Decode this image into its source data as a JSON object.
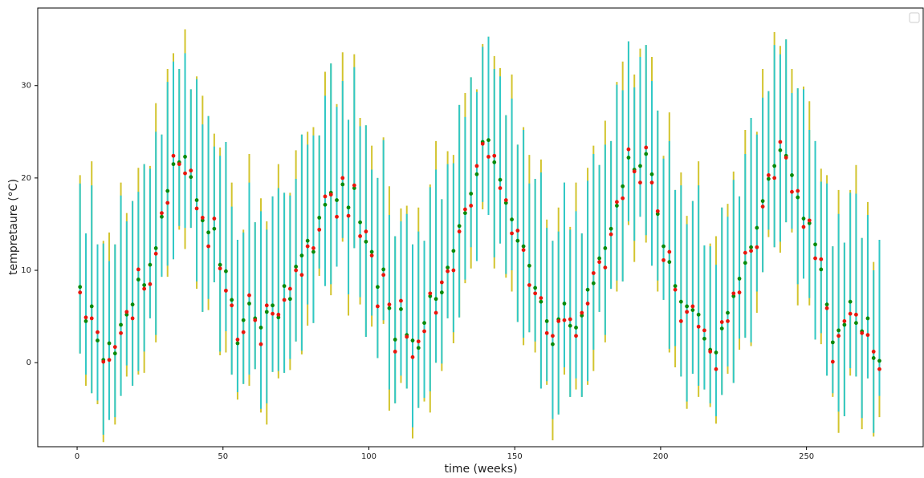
{
  "chart_data": {
    "type": "errorbar",
    "xlabel": "time (weeks)",
    "ylabel": "tempretaure (°C)",
    "xlim": [
      -13.5,
      290
    ],
    "ylim": [
      -9.1,
      38.4
    ],
    "xticks": [
      0,
      50,
      100,
      150,
      200,
      250
    ],
    "yticks": [
      0,
      10,
      20,
      30
    ],
    "legend": "upper right",
    "x": [
      1,
      3,
      5,
      7,
      9,
      11,
      13,
      15,
      17,
      19,
      21,
      23,
      25,
      27,
      29,
      31,
      33,
      35,
      37,
      39,
      41,
      43,
      45,
      47,
      49,
      51,
      53,
      55,
      57,
      59,
      61,
      63,
      65,
      67,
      69,
      71,
      73,
      75,
      77,
      79,
      81,
      83,
      85,
      87,
      89,
      91,
      93,
      95,
      97,
      99,
      101,
      103,
      105,
      107,
      109,
      111,
      113,
      115,
      117,
      119,
      121,
      123,
      125,
      127,
      129,
      131,
      133,
      135,
      137,
      139,
      141,
      143,
      145,
      147,
      149,
      151,
      153,
      155,
      157,
      159,
      161,
      163,
      165,
      167,
      169,
      171,
      173,
      175,
      177,
      179,
      181,
      183,
      185,
      187,
      189,
      191,
      193,
      195,
      197,
      199,
      201,
      203,
      205,
      207,
      209,
      211,
      213,
      215,
      217,
      219,
      221,
      223,
      225,
      227,
      229,
      231,
      233,
      235,
      237,
      239,
      241,
      243,
      245,
      247,
      249,
      251,
      253,
      255,
      257,
      259,
      261,
      263,
      265,
      267,
      269,
      271,
      273,
      275
    ],
    "series": [
      {
        "color": "#d2c42e",
        "low": [
          1.0,
          -2.5,
          -3.3,
          -4.5,
          -8.6,
          -6.2,
          -6.7,
          -3.6,
          -1.5,
          -2.5,
          -1.3,
          -1.1,
          4.8,
          2.2,
          9.3,
          9.3,
          11.2,
          14.4,
          12.3,
          14.6,
          8.0,
          5.5,
          5.7,
          8.7,
          0.8,
          1.1,
          -1.3,
          -4.0,
          -2.3,
          -2.5,
          -0.7,
          -5.4,
          -6.7,
          -1.0,
          -1.7,
          -1.1,
          -0.8,
          2.3,
          0.9,
          4.0,
          4.3,
          9.4,
          8.3,
          7.3,
          10.4,
          13.1,
          5.1,
          12.4,
          6.3,
          2.8,
          3.9,
          0.5,
          4.2,
          -5.2,
          -4.4,
          -2.2,
          -2.8,
          -8.2,
          -4.9,
          -4.2,
          -5.4,
          0.0,
          -0.9,
          4.8,
          2.1,
          4.9,
          8.6,
          10.2,
          11.0,
          16.6,
          16.0,
          10.2,
          12.9,
          9.2,
          7.7,
          4.4,
          1.9,
          3.3,
          1.1,
          -2.8,
          -2.4,
          -8.4,
          -5.6,
          -1.3,
          -3.7,
          -2.9,
          -3.7,
          -2.4,
          -0.9,
          5.5,
          2.2,
          8.0,
          7.7,
          8.8,
          14.9,
          10.9,
          15.8,
          13.0,
          10.5,
          7.7,
          6.8,
          1.1,
          -0.5,
          -1.5,
          -5.0,
          -1.2,
          -3.7,
          -2.9,
          -4.8,
          -6.6,
          -3.5,
          -1.2,
          -2.2,
          1.4,
          2.7,
          1.8,
          5.4,
          9.8,
          13.6,
          12.5,
          11.9,
          15.2,
          14.1,
          6.2,
          9.1,
          6.2,
          2.5,
          2.0,
          -1.4,
          -3.7,
          -7.6,
          -5.8,
          -1.4,
          -1.5,
          -7.2,
          -1.7,
          -8.0,
          -5.9
        ],
        "high": [
          20.3,
          14.0,
          21.8,
          12.8,
          13.2,
          14.1,
          12.8,
          19.5,
          16.2,
          17.5,
          21.1,
          21.5,
          21.3,
          28.1,
          24.7,
          31.8,
          33.5,
          31.8,
          36.1,
          29.6,
          31.0,
          28.9,
          26.7,
          24.8,
          23.3,
          23.9,
          19.5,
          13.3,
          14.4,
          22.6,
          15.2,
          17.8,
          15.3,
          18.0,
          21.5,
          18.4,
          18.4,
          23.0,
          24.7,
          25.0,
          25.5,
          24.6,
          31.5,
          32.4,
          28.0,
          33.6,
          26.3,
          33.4,
          26.5,
          25.7,
          23.5,
          20.0,
          24.4,
          19.1,
          13.7,
          16.7,
          17.0,
          12.8,
          16.8,
          13.2,
          19.3,
          24.0,
          17.7,
          22.9,
          22.5,
          27.9,
          29.2,
          30.9,
          29.6,
          34.5,
          35.3,
          33.2,
          31.9,
          26.8,
          31.2,
          23.6,
          25.5,
          22.5,
          19.9,
          22.0,
          15.5,
          13.2,
          16.8,
          19.5,
          14.7,
          19.5,
          14.0,
          21.1,
          23.5,
          21.4,
          26.2,
          24.0,
          30.4,
          32.6,
          34.8,
          31.2,
          34.0,
          34.4,
          33.1,
          27.3,
          22.4,
          27.1,
          18.7,
          20.6,
          15.9,
          17.5,
          21.8,
          12.7,
          12.9,
          13.7,
          16.8,
          17.2,
          20.7,
          18.0,
          25.2,
          26.5,
          25.0,
          31.8,
          29.4,
          35.8,
          34.3,
          35.0,
          31.8,
          29.7,
          29.9,
          28.3,
          24.0,
          21.0,
          20.3,
          12.6,
          18.7,
          13.0,
          18.7,
          21.4,
          13.5,
          17.4,
          10.9,
          13.3
        ]
      },
      {
        "color": "#30c8c8",
        "low": [
          1.0,
          -1.3,
          -3.3,
          -4.1,
          -7.8,
          -6.2,
          -5.9,
          -3.6,
          -0.3,
          -2.5,
          -0.9,
          1.2,
          4.8,
          3.0,
          9.3,
          10.5,
          11.2,
          14.8,
          14.6,
          14.6,
          8.8,
          5.5,
          6.9,
          8.7,
          1.2,
          3.4,
          -1.3,
          -3.2,
          -2.3,
          -1.3,
          -0.7,
          -5.0,
          -4.4,
          -1.0,
          -0.9,
          -1.1,
          0.4,
          2.3,
          1.3,
          6.3,
          4.3,
          10.2,
          8.3,
          8.5,
          10.4,
          13.5,
          7.4,
          12.4,
          7.1,
          2.8,
          5.1,
          0.5,
          4.6,
          -2.9,
          -4.4,
          -1.4,
          -2.8,
          -7.0,
          -4.9,
          -3.8,
          -3.1,
          0.0,
          -0.1,
          4.8,
          3.3,
          4.9,
          9.0,
          12.5,
          11.0,
          17.4,
          16.0,
          11.4,
          12.9,
          9.6,
          10.0,
          4.4,
          2.7,
          3.3,
          2.3,
          -2.8,
          -2.0,
          -6.1,
          -5.6,
          -0.5,
          -3.7,
          -1.7,
          -3.7,
          -2.0,
          1.4,
          5.5,
          3.0,
          8.0,
          8.9,
          8.8,
          15.3,
          13.2,
          15.8,
          13.8,
          10.5,
          8.9,
          6.8,
          1.5,
          1.8,
          -1.5,
          -4.2,
          -1.2,
          -2.5,
          -2.9,
          -4.4,
          -5.8,
          -3.5,
          -0.4,
          -2.2,
          2.6,
          2.7,
          2.2,
          7.7,
          9.8,
          14.4,
          12.5,
          13.1,
          15.2,
          14.5,
          8.5,
          9.1,
          7.0,
          2.5,
          3.2,
          -1.4,
          -3.3,
          -5.3,
          -5.8,
          -0.6,
          -1.5,
          -6.0,
          -1.7,
          -7.6,
          -3.6
        ],
        "high": [
          19.4,
          14.0,
          19.2,
          12.8,
          12.9,
          11.0,
          12.8,
          18.1,
          15.3,
          17.5,
          18.5,
          21.5,
          21.0,
          25.0,
          24.7,
          30.4,
          32.6,
          31.8,
          33.5,
          29.6,
          30.7,
          25.8,
          26.7,
          23.4,
          22.4,
          23.9,
          16.9,
          13.3,
          14.1,
          19.5,
          15.2,
          16.4,
          14.4,
          18.0,
          18.9,
          18.4,
          18.1,
          19.9,
          24.7,
          23.6,
          24.6,
          24.6,
          28.9,
          32.4,
          27.7,
          30.5,
          26.3,
          32.0,
          25.6,
          25.7,
          20.9,
          20.0,
          24.1,
          16.0,
          13.7,
          15.3,
          16.1,
          12.8,
          14.2,
          13.2,
          19.0,
          20.9,
          17.7,
          21.5,
          21.6,
          27.9,
          26.6,
          30.9,
          29.3,
          34.2,
          35.3,
          31.8,
          31.0,
          26.8,
          28.6,
          23.6,
          25.2,
          19.4,
          19.9,
          20.6,
          14.6,
          13.2,
          14.2,
          19.5,
          14.4,
          16.4,
          14.0,
          19.7,
          22.6,
          21.4,
          23.6,
          24.0,
          30.1,
          29.5,
          34.8,
          29.8,
          33.1,
          34.4,
          30.5,
          27.3,
          22.1,
          24.0,
          18.7,
          19.2,
          15.0,
          17.5,
          19.2,
          12.7,
          12.6,
          10.6,
          16.8,
          15.8,
          19.8,
          18.0,
          22.6,
          26.5,
          24.7,
          28.7,
          29.4,
          34.4,
          33.4,
          35.0,
          29.2,
          29.7,
          29.6,
          25.2,
          24.0,
          19.6,
          19.4,
          12.6,
          16.1,
          13.0,
          18.4,
          18.3,
          13.5,
          16.0,
          10.0,
          13.3
        ]
      },
      {
        "color": "#0a8a0a",
        "values": [
          8.2,
          4.5,
          6.1,
          2.4,
          0.3,
          2.1,
          1.0,
          4.1,
          5.2,
          6.3,
          9.0,
          8.4,
          10.6,
          12.4,
          15.8,
          18.6,
          21.5,
          21.7,
          22.3,
          20.1,
          17.6,
          15.4,
          14.1,
          14.5,
          10.6,
          9.9,
          6.8,
          2.1,
          4.6,
          6.4,
          4.8,
          3.8,
          5.5,
          6.2,
          4.9,
          8.3,
          6.9,
          10.4,
          11.6,
          13.2,
          12.0,
          15.7,
          17.1,
          18.4,
          17.6,
          19.3,
          16.8,
          18.9,
          15.2,
          13.1,
          12.0,
          8.2,
          10.1,
          5.9,
          2.5,
          5.8,
          3.0,
          2.4,
          1.6,
          4.3,
          7.2,
          6.9,
          7.6,
          10.3,
          12.1,
          14.8,
          16.2,
          18.3,
          20.4,
          23.9,
          24.1,
          21.7,
          19.8,
          17.3,
          15.5,
          13.2,
          12.6,
          10.5,
          8.1,
          6.6,
          4.5,
          2.0,
          4.7,
          6.4,
          4.0,
          3.8,
          5.1,
          7.9,
          8.6,
          11.3,
          12.4,
          14.5,
          17.0,
          19.1,
          22.2,
          20.9,
          21.3,
          22.6,
          20.4,
          16.1,
          12.6,
          10.9,
          8.3,
          6.6,
          6.1,
          5.7,
          5.2,
          2.6,
          1.4,
          1.1,
          3.7,
          5.4,
          7.2,
          9.1,
          10.8,
          12.5,
          14.6,
          17.5,
          19.9,
          21.3,
          23.0,
          22.4,
          20.3,
          17.9,
          15.6,
          15.1,
          12.8,
          10.1,
          6.3,
          2.2,
          3.5,
          4.1,
          6.6,
          4.3,
          3.4,
          4.8,
          0.5,
          0.2
        ]
      },
      {
        "color": "#e8160c",
        "values": [
          7.6,
          4.9,
          4.8,
          3.3,
          0.1,
          0.3,
          1.7,
          3.2,
          5.5,
          4.8,
          10.1,
          8.0,
          8.5,
          11.8,
          16.2,
          17.3,
          22.4,
          21.5,
          20.5,
          20.8,
          16.7,
          15.7,
          12.6,
          15.6,
          10.2,
          7.8,
          6.2,
          2.5,
          3.3,
          7.3,
          4.6,
          2.0,
          6.2,
          5.3,
          5.2,
          6.8,
          8.0,
          10.0,
          9.5,
          12.6,
          12.4,
          14.4,
          18.0,
          18.2,
          15.8,
          20.0,
          15.9,
          19.2,
          13.7,
          14.2,
          11.6,
          6.1,
          9.5,
          6.3,
          1.2,
          6.7,
          2.8,
          0.6,
          2.3,
          3.4,
          7.5,
          5.4,
          8.7,
          9.9,
          10.0,
          14.2,
          16.6,
          17.0,
          21.3,
          23.7,
          22.3,
          22.4,
          18.9,
          17.6,
          14.0,
          14.3,
          12.2,
          8.4,
          7.5,
          7.0,
          3.2,
          2.9,
          4.5,
          4.6,
          4.7,
          2.9,
          5.4,
          6.4,
          9.7,
          10.9,
          10.3,
          13.9,
          17.4,
          17.8,
          23.1,
          20.7,
          19.5,
          23.3,
          19.5,
          16.4,
          11.1,
          12.0,
          7.9,
          4.5,
          5.5,
          6.1,
          3.9,
          3.5,
          1.2,
          -0.7,
          4.4,
          4.5,
          7.5,
          7.6,
          11.9,
          12.1,
          12.5,
          16.9,
          20.3,
          20.0,
          23.9,
          22.2,
          18.5,
          18.6,
          14.7,
          15.4,
          11.3,
          11.2,
          5.9,
          0.1,
          2.9,
          4.5,
          5.3,
          5.2,
          3.2,
          3.0,
          1.2,
          -0.7
        ]
      }
    ]
  }
}
